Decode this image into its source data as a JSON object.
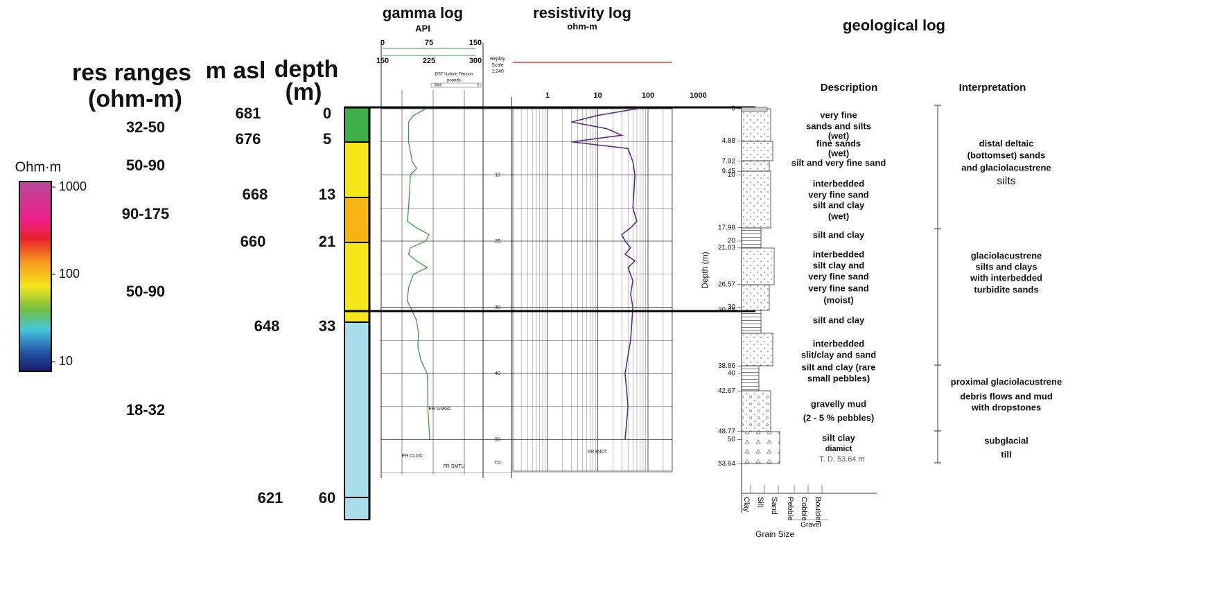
{
  "res_panel": {
    "title_line1": "res ranges",
    "title_line2": "(ohm-m)",
    "ranges": [
      "32-50",
      "50-90",
      "90-175",
      "50-90",
      "18-32"
    ]
  },
  "depth_panel": {
    "masl_title": "m asl",
    "depth_title_line1": "depth",
    "depth_title_line2": "(m)",
    "masl": [
      681,
      676,
      668,
      660,
      648,
      621
    ],
    "depth": [
      0,
      5,
      13,
      21,
      33,
      60
    ],
    "zone_colors": [
      "#3fae49",
      "#f4e71a",
      "#f7b512",
      "#f4e71a",
      "#a9dce9"
    ]
  },
  "colorbar": {
    "unit": "Ohm·m",
    "ticks": [
      1000,
      100,
      10
    ]
  },
  "gamma_log": {
    "title": "gamma log",
    "unit": "API",
    "scale1": [
      0,
      75,
      150
    ],
    "scale2": [
      150,
      225,
      300
    ],
    "tension_label": "DST Uphole Tension",
    "tension_unit": "pounds",
    "tension_ticks": [
      3000,
      0
    ],
    "replay": [
      "Replay",
      "Scale",
      "1:240"
    ],
    "depth_ticks": [
      10,
      20,
      30,
      40,
      50
    ],
    "td": "TD",
    "annotations": [
      "FR GMGC",
      "FR CLDC",
      "FR SMTU"
    ],
    "color": "#3a9a45",
    "depth": [
      0,
      1,
      2,
      5,
      8,
      9,
      10,
      15,
      17,
      18,
      19,
      20,
      21,
      22,
      23,
      24,
      25,
      27,
      29,
      30,
      32,
      34,
      36,
      38,
      40,
      42,
      45,
      48,
      50
    ],
    "api": [
      70,
      50,
      42,
      42,
      48,
      55,
      45,
      42,
      40,
      55,
      75,
      70,
      45,
      42,
      55,
      72,
      50,
      42,
      40,
      45,
      55,
      58,
      57,
      62,
      72,
      73,
      73,
      75,
      76
    ]
  },
  "resistivity_log": {
    "title": "resistivity log",
    "unit": "ohm-m",
    "ticks": [
      1,
      10,
      100,
      1000
    ],
    "annotation": "FR R40T",
    "color": "#5b2c83",
    "depth": [
      0,
      1,
      2,
      3,
      4,
      5,
      6,
      8,
      10,
      15,
      17,
      18,
      19,
      20,
      21,
      22,
      23,
      24,
      26,
      28,
      30,
      35,
      40,
      45,
      50
    ],
    "ohm_m": [
      60,
      10,
      3,
      15,
      30,
      3,
      40,
      50,
      55,
      50,
      60,
      45,
      30,
      35,
      45,
      35,
      55,
      40,
      50,
      45,
      50,
      45,
      35,
      40,
      35
    ]
  },
  "geological_log": {
    "title": "geological log",
    "description_header": "Description",
    "interpretation_header": "Interpretation",
    "depth_axis_label": "Depth (m)",
    "depth_labels": [
      0,
      4.88,
      7.92,
      9.45,
      10,
      17.98,
      20,
      21.03,
      26.57,
      30,
      30.48,
      38.86,
      40,
      42.67,
      48.77,
      50,
      53.64
    ],
    "descriptions": [
      [
        "very fine",
        "sands and silts",
        "(wet)"
      ],
      [
        "fine sands",
        "(wet)"
      ],
      [
        "silt and very fine sand"
      ],
      [
        "interbedded",
        "very fine sand",
        "silt and clay",
        "(wet)"
      ],
      [
        "silt and clay"
      ],
      [
        "interbedded",
        "silt clay and",
        "very fine sand"
      ],
      [
        "very fine sand",
        "(moist)"
      ],
      [
        "silt and clay"
      ],
      [
        "interbedded",
        "slit/clay and sand"
      ],
      [
        "silt and clay (rare",
        "small pebbles)"
      ],
      [
        "gravelly mud",
        "(2 - 5 % pebbles)"
      ],
      [
        "silt clay",
        "diamict"
      ]
    ],
    "interpretations": [
      [
        "distal deltaic",
        "(bottomset) sands",
        "and glaciolacustrene",
        "silts"
      ],
      [
        "glaciolacustrene",
        "silts and clays",
        "with interbedded",
        "turbidite sands"
      ],
      [
        "proximal glaciolacustrene",
        "debris flows and mud",
        "with dropstones"
      ],
      [
        "subglacial",
        "till"
      ]
    ],
    "td_label": "T. D. 53.64 m",
    "grain_sizes": [
      "Clay",
      "Silt",
      "Sand",
      "Pebble",
      "Cobble",
      "Boulder"
    ],
    "gravel_label": "Gravel",
    "grain_size_label": "Grain Size"
  }
}
